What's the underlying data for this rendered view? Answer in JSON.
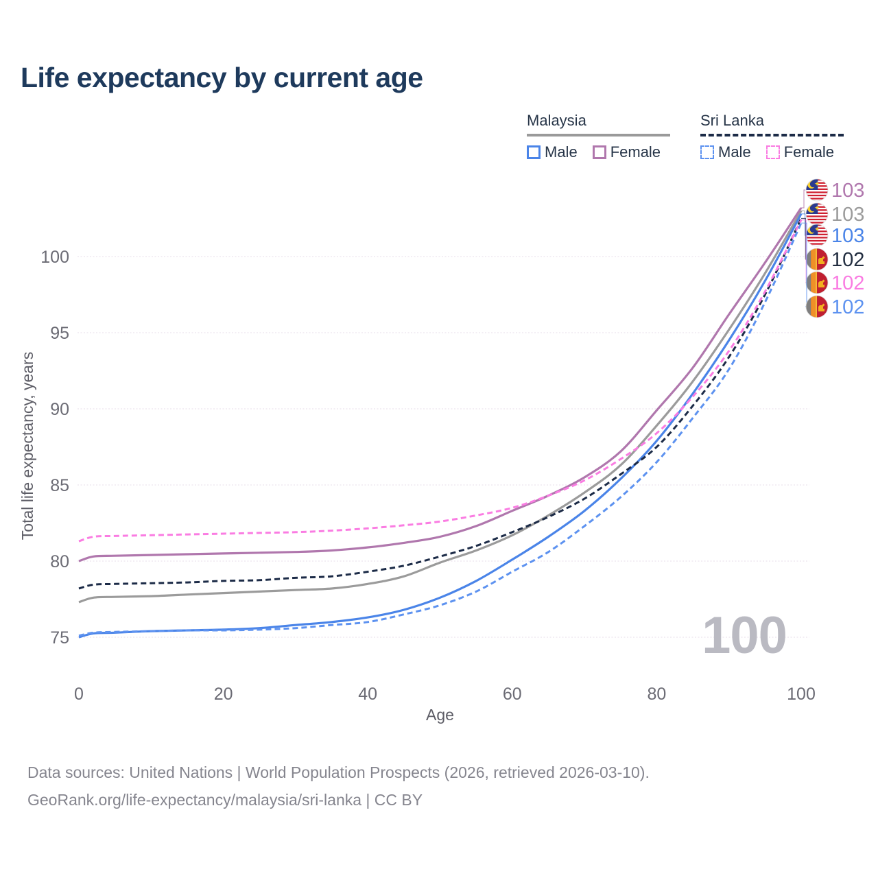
{
  "title": "Life expectancy by current age",
  "legend": {
    "groups": [
      {
        "country": "Malaysia",
        "line_style": "solid",
        "underline_color": "#9a9a9a",
        "entries": [
          {
            "label": "Male",
            "color": "#4a84e8"
          },
          {
            "label": "Female",
            "color": "#b077ad"
          }
        ]
      },
      {
        "country": "Sri Lanka",
        "line_style": "dashed",
        "underline_color": "#1c2b47",
        "entries": [
          {
            "label": "Male",
            "color": "#5d92f0"
          },
          {
            "label": "Female",
            "color": "#fa7ce2"
          }
        ]
      }
    ]
  },
  "chart_data": {
    "type": "line",
    "title": "Life expectancy by current age",
    "xlabel": "Age",
    "ylabel": "Total life expectancy, years",
    "x_ticks": [
      0,
      20,
      40,
      60,
      80,
      100
    ],
    "y_ticks": [
      75,
      80,
      85,
      90,
      95,
      100
    ],
    "xlim": [
      0,
      100
    ],
    "ylim": [
      74,
      105.5
    ],
    "grid": true,
    "legend_position": "top-right",
    "watermark": "100",
    "x": [
      0,
      2,
      5,
      10,
      15,
      20,
      25,
      30,
      35,
      40,
      45,
      50,
      55,
      60,
      65,
      70,
      75,
      80,
      85,
      90,
      95,
      100
    ],
    "series": [
      {
        "name": "Malaysia Female",
        "country": "Malaysia",
        "sex": "female",
        "style": "solid",
        "color": "#b077ad",
        "end_label": "103",
        "end_label_color": "#b077ad",
        "values": [
          80.0,
          80.3,
          80.35,
          80.4,
          80.45,
          80.5,
          80.55,
          80.6,
          80.7,
          80.9,
          81.2,
          81.6,
          82.3,
          83.3,
          84.3,
          85.5,
          87.2,
          89.9,
          92.7,
          96.2,
          99.6,
          103.2
        ]
      },
      {
        "name": "Malaysia all",
        "country": "Malaysia",
        "sex": "all",
        "style": "solid",
        "color": "#9b9b9b",
        "end_label": "103",
        "end_label_color": "#9b9b9b",
        "values": [
          77.3,
          77.6,
          77.65,
          77.7,
          77.8,
          77.9,
          78.0,
          78.1,
          78.2,
          78.5,
          79.0,
          79.9,
          80.7,
          81.7,
          83.0,
          84.5,
          86.3,
          88.9,
          91.8,
          95.2,
          98.9,
          103.0
        ]
      },
      {
        "name": "Malaysia Male",
        "country": "Malaysia",
        "sex": "male",
        "style": "solid",
        "color": "#4a84e8",
        "end_label": "103",
        "end_label_color": "#4a84e8",
        "values": [
          75.0,
          75.25,
          75.3,
          75.4,
          75.45,
          75.5,
          75.6,
          75.8,
          76.0,
          76.3,
          76.8,
          77.6,
          78.7,
          80.1,
          81.6,
          83.3,
          85.4,
          87.9,
          91.0,
          94.5,
          98.4,
          102.8
        ]
      },
      {
        "name": "Sri Lanka all",
        "country": "Sri Lanka",
        "sex": "all",
        "style": "dashed",
        "color": "#1c2b47",
        "end_label": "102",
        "end_label_color": "#232e41",
        "values": [
          78.2,
          78.45,
          78.5,
          78.55,
          78.6,
          78.7,
          78.75,
          78.9,
          79.0,
          79.3,
          79.7,
          80.3,
          81.0,
          81.9,
          82.9,
          84.1,
          85.7,
          87.5,
          90.2,
          93.4,
          97.5,
          102.5
        ]
      },
      {
        "name": "Sri Lanka Female",
        "country": "Sri Lanka",
        "sex": "female",
        "style": "dashed",
        "color": "#fa7ce2",
        "end_label": "102",
        "end_label_color": "#fa7ce2",
        "values": [
          81.3,
          81.6,
          81.65,
          81.7,
          81.75,
          81.8,
          81.85,
          81.9,
          82.0,
          82.15,
          82.35,
          82.6,
          83.0,
          83.5,
          84.3,
          85.3,
          86.7,
          88.4,
          90.8,
          93.8,
          97.7,
          102.4
        ]
      },
      {
        "name": "Sri Lanka Male",
        "country": "Sri Lanka",
        "sex": "male",
        "style": "dashed",
        "color": "#5d92f0",
        "end_label": "102",
        "end_label_color": "#5d92f0",
        "values": [
          75.1,
          75.3,
          75.35,
          75.4,
          75.45,
          75.45,
          75.5,
          75.6,
          75.8,
          76.0,
          76.5,
          77.1,
          78.0,
          79.3,
          80.6,
          82.3,
          84.2,
          86.5,
          89.4,
          92.6,
          97.0,
          102.2
        ]
      }
    ]
  },
  "footer": {
    "line1": "Data sources: United Nations | World Population Prospects (2026, retrieved 2026-03-10).",
    "line2": "GeoRank.org/life-expectancy/malaysia/sri-lanka | CC BY"
  }
}
